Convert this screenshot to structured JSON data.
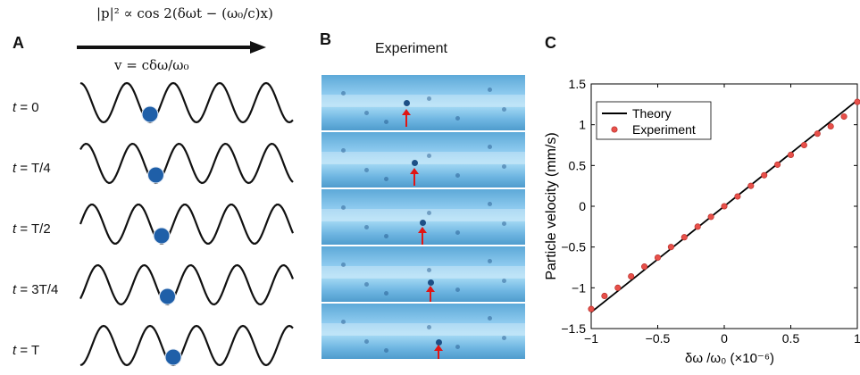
{
  "panel_a": {
    "label": "A",
    "formula_top": "|p|² ∝ cos 2(δωt − (ω₀/c)x)",
    "formula_bottom": "v = cδω/ω₀",
    "rows": [
      {
        "var": "t",
        "value": "= 0",
        "phase_fraction": 0.0
      },
      {
        "var": "t",
        "value": "= T/4",
        "phase_fraction": 0.25
      },
      {
        "var": "t",
        "value": "= T/2",
        "phase_fraction": 0.5
      },
      {
        "var": "t",
        "value": "= 3T/4",
        "phase_fraction": 0.75
      },
      {
        "var": "t",
        "value": "= T",
        "phase_fraction": 1.0
      }
    ],
    "colors": {
      "wave": "#111111",
      "particle": "#1f5fa8"
    }
  },
  "panel_b": {
    "label": "B",
    "title": "Experiment",
    "frame_count": 5,
    "colors": {
      "arrow": "#e01515"
    }
  },
  "panel_c": {
    "label": "C"
  },
  "chart_data": {
    "type": "scatter",
    "xlabel": "δω /ω₀  (×10⁻⁶)",
    "ylabel": "Particle velocity (mm/s)",
    "xlim": [
      -1,
      1
    ],
    "ylim": [
      -1.5,
      1.5
    ],
    "xticks": [
      -1,
      -0.5,
      0,
      0.5,
      1
    ],
    "xtick_labels": [
      "−1",
      "−0.5",
      "0",
      "0.5",
      "1"
    ],
    "yticks": [
      -1.5,
      -1,
      -0.5,
      0,
      0.5,
      1,
      1.5
    ],
    "ytick_labels": [
      "−1.5",
      "−1",
      "−0.5",
      "0",
      "0.5",
      "1",
      "1.5"
    ],
    "grid": false,
    "legend_position": "top-left",
    "series": [
      {
        "name": "Theory",
        "kind": "line",
        "color": "#000000",
        "x": [
          -1,
          1
        ],
        "y": [
          -1.3,
          1.3
        ]
      },
      {
        "name": "Experiment",
        "kind": "scatter",
        "color": "#e8504a",
        "x": [
          -1.0,
          -0.9,
          -0.8,
          -0.7,
          -0.6,
          -0.5,
          -0.4,
          -0.3,
          -0.2,
          -0.1,
          0.0,
          0.1,
          0.2,
          0.3,
          0.4,
          0.5,
          0.6,
          0.7,
          0.8,
          0.9,
          1.0
        ],
        "y": [
          -1.26,
          -1.1,
          -1.0,
          -0.86,
          -0.74,
          -0.63,
          -0.5,
          -0.38,
          -0.25,
          -0.13,
          0.0,
          0.12,
          0.25,
          0.38,
          0.51,
          0.63,
          0.75,
          0.89,
          0.98,
          1.1,
          1.28
        ]
      }
    ]
  }
}
